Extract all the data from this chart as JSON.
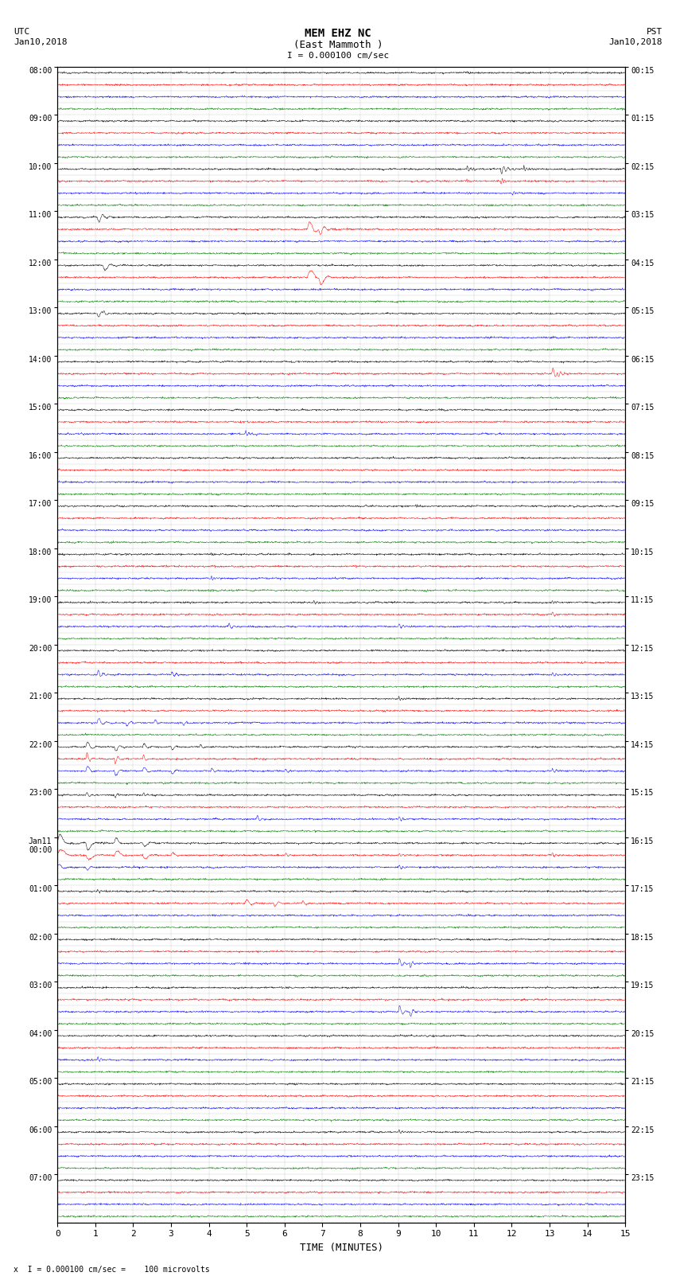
{
  "title_line1": "MEM EHZ NC",
  "title_line2": "(East Mammoth )",
  "scale_label": "I = 0.000100 cm/sec",
  "left_label_top": "UTC",
  "left_label_date": "Jan10,2018",
  "right_label_top": "PST",
  "right_label_date": "Jan10,2018",
  "bottom_label": "TIME (MINUTES)",
  "footnote": "x  I = 0.000100 cm/sec =    100 microvolts",
  "xlabel_ticks": [
    0,
    1,
    2,
    3,
    4,
    5,
    6,
    7,
    8,
    9,
    10,
    11,
    12,
    13,
    14,
    15
  ],
  "bg_color": "#ffffff",
  "grid_color": "#aaaaaa",
  "amplitude_scale": 0.38,
  "noise_amplitude": 0.09,
  "seed": 12345,
  "utc_times": [
    "08:00",
    "09:00",
    "10:00",
    "11:00",
    "12:00",
    "13:00",
    "14:00",
    "15:00",
    "16:00",
    "17:00",
    "18:00",
    "19:00",
    "20:00",
    "21:00",
    "22:00",
    "23:00",
    "Jan11\n00:00",
    "01:00",
    "02:00",
    "03:00",
    "04:00",
    "05:00",
    "06:00",
    "07:00"
  ],
  "pst_times": [
    "00:15",
    "01:15",
    "02:15",
    "03:15",
    "04:15",
    "05:15",
    "06:15",
    "07:15",
    "08:15",
    "09:15",
    "10:15",
    "11:15",
    "12:15",
    "13:15",
    "14:15",
    "15:15",
    "16:15",
    "17:15",
    "18:15",
    "19:15",
    "20:15",
    "21:15",
    "22:15",
    "23:15"
  ]
}
